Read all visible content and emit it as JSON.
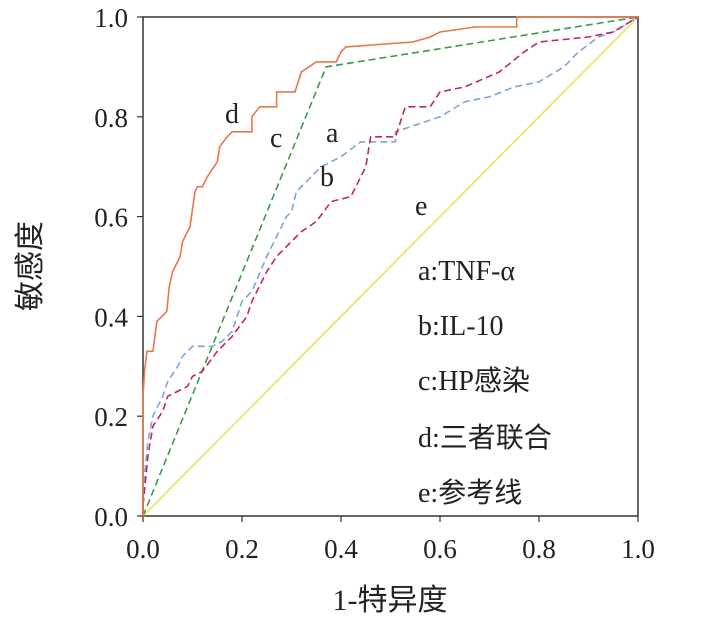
{
  "chart_data": {
    "type": "line",
    "title": "",
    "xlabel": "1-特异度",
    "ylabel": "敏感度",
    "xlim": [
      0,
      1
    ],
    "ylim": [
      0,
      1
    ],
    "xticks": [
      "0.0",
      "0.2",
      "0.4",
      "0.6",
      "0.8",
      "1.0"
    ],
    "yticks": [
      "0.0",
      "0.2",
      "0.4",
      "0.6",
      "0.8",
      "1.0"
    ],
    "grid": false,
    "legend_position": "bottom-right",
    "series": [
      {
        "key": "a",
        "name": "a:TNF-α",
        "color": "#7aa6d8",
        "dash": true,
        "points": [
          [
            0,
            0
          ],
          [
            0,
            0.05
          ],
          [
            0.01,
            0.15
          ],
          [
            0.02,
            0.2
          ],
          [
            0.04,
            0.24
          ],
          [
            0.05,
            0.27
          ],
          [
            0.07,
            0.3
          ],
          [
            0.08,
            0.32
          ],
          [
            0.1,
            0.34
          ],
          [
            0.14,
            0.34
          ],
          [
            0.16,
            0.35
          ],
          [
            0.18,
            0.37
          ],
          [
            0.2,
            0.43
          ],
          [
            0.22,
            0.45
          ],
          [
            0.25,
            0.52
          ],
          [
            0.27,
            0.56
          ],
          [
            0.29,
            0.6
          ],
          [
            0.3,
            0.61
          ],
          [
            0.31,
            0.65
          ],
          [
            0.33,
            0.67
          ],
          [
            0.36,
            0.7
          ],
          [
            0.4,
            0.72
          ],
          [
            0.44,
            0.75
          ],
          [
            0.51,
            0.75
          ],
          [
            0.51,
            0.77
          ],
          [
            0.54,
            0.78
          ],
          [
            0.57,
            0.79
          ],
          [
            0.6,
            0.8
          ],
          [
            0.65,
            0.83
          ],
          [
            0.7,
            0.84
          ],
          [
            0.75,
            0.86
          ],
          [
            0.8,
            0.87
          ],
          [
            0.85,
            0.9
          ],
          [
            0.88,
            0.93
          ],
          [
            0.92,
            0.96
          ],
          [
            0.95,
            0.97
          ],
          [
            1,
            1
          ]
        ]
      },
      {
        "key": "b",
        "name": "b:IL-10",
        "color": "#c8245a",
        "dash": true,
        "points": [
          [
            0,
            0
          ],
          [
            0,
            0.02
          ],
          [
            0.01,
            0.12
          ],
          [
            0.02,
            0.18
          ],
          [
            0.04,
            0.21
          ],
          [
            0.05,
            0.24
          ],
          [
            0.09,
            0.26
          ],
          [
            0.1,
            0.28
          ],
          [
            0.12,
            0.29
          ],
          [
            0.15,
            0.33
          ],
          [
            0.18,
            0.36
          ],
          [
            0.21,
            0.4
          ],
          [
            0.22,
            0.43
          ],
          [
            0.25,
            0.49
          ],
          [
            0.27,
            0.52
          ],
          [
            0.3,
            0.55
          ],
          [
            0.32,
            0.57
          ],
          [
            0.35,
            0.59
          ],
          [
            0.38,
            0.63
          ],
          [
            0.42,
            0.64
          ],
          [
            0.45,
            0.7
          ],
          [
            0.46,
            0.76
          ],
          [
            0.51,
            0.76
          ],
          [
            0.53,
            0.82
          ],
          [
            0.58,
            0.82
          ],
          [
            0.6,
            0.85
          ],
          [
            0.65,
            0.86
          ],
          [
            0.72,
            0.89
          ],
          [
            0.77,
            0.93
          ],
          [
            0.8,
            0.95
          ],
          [
            0.9,
            0.96
          ],
          [
            0.95,
            0.97
          ],
          [
            1,
            1
          ]
        ]
      },
      {
        "key": "c",
        "name": "c:HP感染",
        "color": "#3a9a4a",
        "dash": true,
        "points": [
          [
            0,
            0
          ],
          [
            0.37,
            0.9
          ],
          [
            1,
            1
          ]
        ]
      },
      {
        "key": "d",
        "name": "d:三者联合",
        "color": "#e8774a",
        "dash": false,
        "points": [
          [
            0,
            0
          ],
          [
            0,
            0.24
          ],
          [
            0.003,
            0.29
          ],
          [
            0.008,
            0.33
          ],
          [
            0.02,
            0.33
          ],
          [
            0.028,
            0.39
          ],
          [
            0.048,
            0.41
          ],
          [
            0.053,
            0.46
          ],
          [
            0.06,
            0.49
          ],
          [
            0.075,
            0.52
          ],
          [
            0.08,
            0.55
          ],
          [
            0.095,
            0.58
          ],
          [
            0.105,
            0.65
          ],
          [
            0.11,
            0.66
          ],
          [
            0.12,
            0.66
          ],
          [
            0.13,
            0.68
          ],
          [
            0.15,
            0.71
          ],
          [
            0.155,
            0.74
          ],
          [
            0.17,
            0.76
          ],
          [
            0.18,
            0.77
          ],
          [
            0.22,
            0.77
          ],
          [
            0.22,
            0.8
          ],
          [
            0.236,
            0.82
          ],
          [
            0.27,
            0.82
          ],
          [
            0.27,
            0.85
          ],
          [
            0.307,
            0.85
          ],
          [
            0.32,
            0.89
          ],
          [
            0.35,
            0.91
          ],
          [
            0.39,
            0.91
          ],
          [
            0.4,
            0.93
          ],
          [
            0.41,
            0.94
          ],
          [
            0.545,
            0.95
          ],
          [
            0.58,
            0.96
          ],
          [
            0.6,
            0.97
          ],
          [
            0.67,
            0.98
          ],
          [
            0.755,
            0.98
          ],
          [
            0.755,
            1
          ],
          [
            1,
            1
          ]
        ]
      },
      {
        "key": "e",
        "name": "e:参考线",
        "color": "#e8e060",
        "dash": false,
        "points": [
          [
            0,
            0
          ],
          [
            1,
            1
          ]
        ]
      }
    ],
    "curve_labels": {
      "a": "a",
      "b": "b",
      "c": "c",
      "d": "d",
      "e": "e"
    }
  }
}
